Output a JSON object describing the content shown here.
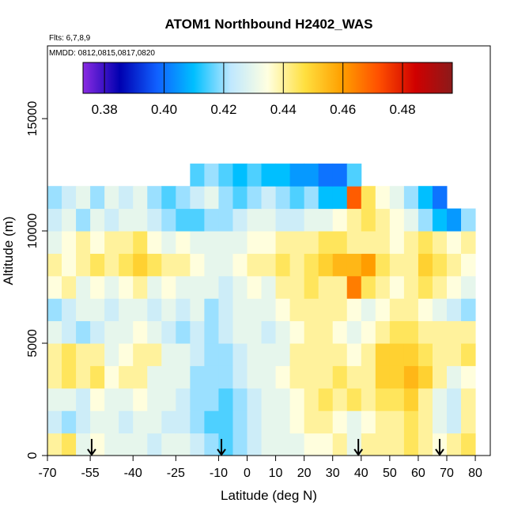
{
  "chart_data": {
    "type": "heatmap",
    "title": "ATOM1 Northbound H2402_WAS",
    "subtitle": "Flts: 6,7,8,9",
    "annotation": "MMDD: 0812,0815,0817,0820",
    "xlabel": "Latitude (deg N)",
    "ylabel": "Altitude (m)",
    "xlim": [
      -70,
      85.25
    ],
    "ylim": [
      0,
      18240
    ],
    "xticks": [
      -70,
      -55,
      -40,
      -25,
      -10,
      0,
      10,
      20,
      30,
      40,
      50,
      60,
      70,
      80
    ],
    "yticks": [
      0,
      5000,
      10000,
      15000
    ],
    "x": [
      -67.5,
      -62.5,
      -57.5,
      -52.5,
      -47.5,
      -42.5,
      -37.5,
      -32.5,
      -27.5,
      -22.5,
      -17.5,
      -12.5,
      -7.5,
      -2.5,
      2.5,
      7.5,
      12.5,
      17.5,
      22.5,
      27.5,
      32.5,
      37.5,
      42.5,
      47.5,
      52.5,
      57.5,
      62.5,
      67.5,
      72.5,
      77.5
    ],
    "y": [
      500,
      1500,
      2500,
      3500,
      4500,
      5500,
      6500,
      7500,
      8500,
      9500,
      10500,
      11500,
      12500
    ],
    "z": [
      [
        0.44,
        0.445,
        0.43,
        0.435,
        0.43,
        0.43,
        0.43,
        0.425,
        0.43,
        0.43,
        0.425,
        0.42,
        0.415,
        0.42,
        0.425,
        0.43,
        0.43,
        0.43,
        0.435,
        0.435,
        0.44,
        0.43,
        0.44,
        0.44,
        0.44,
        0.445,
        0.44,
        0.435,
        0.44,
        0.445
      ],
      [
        0.425,
        0.42,
        0.425,
        0.43,
        0.43,
        0.425,
        0.43,
        0.43,
        0.425,
        0.425,
        0.42,
        0.415,
        0.415,
        0.42,
        0.425,
        0.43,
        0.43,
        0.435,
        0.44,
        0.44,
        0.435,
        0.43,
        0.435,
        0.44,
        0.44,
        0.445,
        0.44,
        0.43,
        0.425,
        0.44
      ],
      [
        0.43,
        0.43,
        0.425,
        0.435,
        0.43,
        0.43,
        0.435,
        0.43,
        0.43,
        0.425,
        0.42,
        0.42,
        0.415,
        0.42,
        0.425,
        0.43,
        0.43,
        0.435,
        0.44,
        0.445,
        0.44,
        0.445,
        0.44,
        0.445,
        0.445,
        0.45,
        0.44,
        0.43,
        0.425,
        0.44
      ],
      [
        0.44,
        0.445,
        0.44,
        0.445,
        0.435,
        0.44,
        0.44,
        0.43,
        0.43,
        0.43,
        0.42,
        0.42,
        0.42,
        0.425,
        0.43,
        0.43,
        0.435,
        0.44,
        0.44,
        0.44,
        0.445,
        0.44,
        0.44,
        0.45,
        0.45,
        0.455,
        0.45,
        0.44,
        0.43,
        0.435
      ],
      [
        0.44,
        0.445,
        0.44,
        0.44,
        0.43,
        0.435,
        0.44,
        0.44,
        0.43,
        0.43,
        0.425,
        0.42,
        0.42,
        0.425,
        0.43,
        0.43,
        0.43,
        0.44,
        0.44,
        0.44,
        0.44,
        0.435,
        0.44,
        0.45,
        0.45,
        0.45,
        0.445,
        0.44,
        0.44,
        0.445
      ],
      [
        0.43,
        0.425,
        0.42,
        0.425,
        0.43,
        0.43,
        0.435,
        0.43,
        0.425,
        0.42,
        0.425,
        0.42,
        0.425,
        0.43,
        0.43,
        0.425,
        0.43,
        0.435,
        0.44,
        0.44,
        0.435,
        0.43,
        0.435,
        0.44,
        0.445,
        0.445,
        0.44,
        0.44,
        0.44,
        0.44
      ],
      [
        0.42,
        0.425,
        0.43,
        0.43,
        0.425,
        0.43,
        0.43,
        0.425,
        0.43,
        0.425,
        0.43,
        0.42,
        0.425,
        0.43,
        0.43,
        0.43,
        0.435,
        0.44,
        0.44,
        0.44,
        0.44,
        0.435,
        0.43,
        0.435,
        0.44,
        0.44,
        0.435,
        0.43,
        0.425,
        0.42
      ],
      [
        0.435,
        0.44,
        0.43,
        0.435,
        0.43,
        0.435,
        0.44,
        0.43,
        0.435,
        0.43,
        0.43,
        0.43,
        0.425,
        0.43,
        0.435,
        0.43,
        0.44,
        0.44,
        0.445,
        0.44,
        0.44,
        0.465,
        0.445,
        0.44,
        0.435,
        0.44,
        0.445,
        0.44,
        0.435,
        0.43
      ],
      [
        0.44,
        0.435,
        0.44,
        0.445,
        0.44,
        0.445,
        0.45,
        0.445,
        0.44,
        0.44,
        0.435,
        0.43,
        0.43,
        0.435,
        0.44,
        0.44,
        0.445,
        0.44,
        0.445,
        0.45,
        0.455,
        0.455,
        0.46,
        0.445,
        0.44,
        0.44,
        0.45,
        0.445,
        0.44,
        0.435
      ],
      [
        0.43,
        0.435,
        0.44,
        0.435,
        0.44,
        0.44,
        0.445,
        0.435,
        0.43,
        0.435,
        0.43,
        0.43,
        0.43,
        0.43,
        0.435,
        0.435,
        0.44,
        0.44,
        0.44,
        0.445,
        0.445,
        0.44,
        0.44,
        0.44,
        0.435,
        0.44,
        0.445,
        0.44,
        0.435,
        0.44
      ],
      [
        0.425,
        0.43,
        0.42,
        0.43,
        0.425,
        0.43,
        0.43,
        0.425,
        0.42,
        0.415,
        0.415,
        0.42,
        0.42,
        0.425,
        0.43,
        0.43,
        0.425,
        0.425,
        0.43,
        0.43,
        0.435,
        0.44,
        0.445,
        0.44,
        0.435,
        0.43,
        0.42,
        0.41,
        0.405,
        0.42
      ],
      [
        0.42,
        0.425,
        0.43,
        0.42,
        0.43,
        0.425,
        0.43,
        0.42,
        0.415,
        0.42,
        0.425,
        0.43,
        0.42,
        0.415,
        0.42,
        0.425,
        0.42,
        0.415,
        0.42,
        0.41,
        0.41,
        0.47,
        0.445,
        0.435,
        0.43,
        0.42,
        0.41,
        0.4,
        null,
        null
      ],
      [
        null,
        null,
        null,
        null,
        null,
        null,
        null,
        null,
        null,
        null,
        0.415,
        0.42,
        0.415,
        0.41,
        0.415,
        0.41,
        0.41,
        0.405,
        0.405,
        0.4,
        0.4,
        0.415,
        null,
        null,
        null,
        null,
        null,
        null,
        null,
        null
      ]
    ],
    "colorbar": {
      "lim": [
        0.3728,
        0.4967
      ],
      "ticks": [
        0.38,
        {
          "value": 0.4,
          "label": "0.40"
        },
        0.42,
        0.44,
        0.46,
        0.48
      ],
      "colors": [
        "#8a2be2",
        "#0000b0",
        "#1060ff",
        "#00bfff",
        "#bfe8ff",
        "#ffffe0",
        "#ffe040",
        "#ffa000",
        "#ff5000",
        "#d00000",
        "#8b1a1a"
      ]
    },
    "arrows_x": [
      -54.5,
      -9,
      39,
      67.5
    ]
  }
}
